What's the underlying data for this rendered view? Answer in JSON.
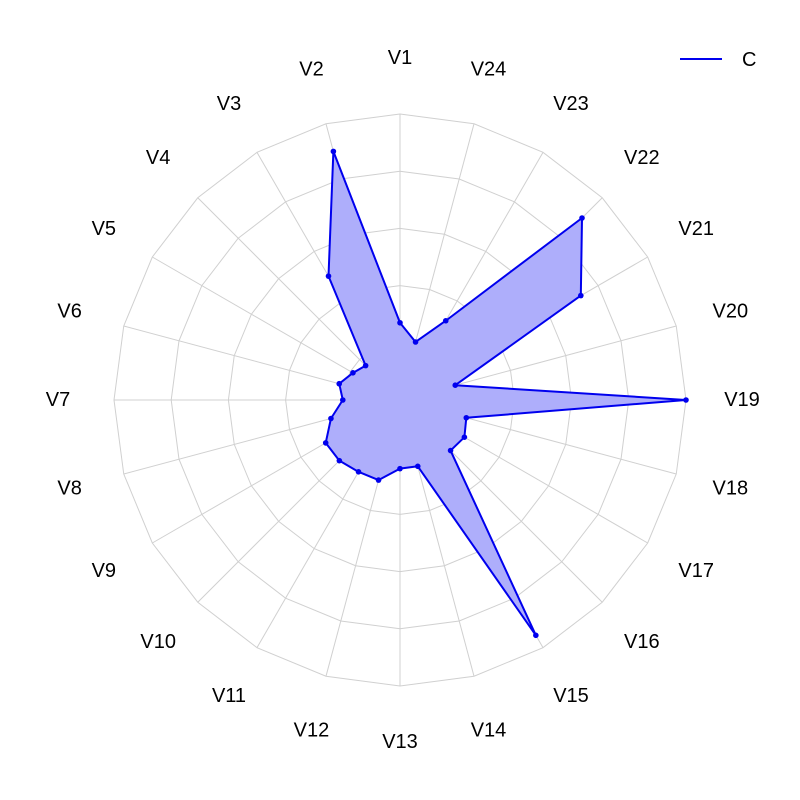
{
  "chart_data": {
    "type": "radar",
    "title": "",
    "axes": [
      "V1",
      "V2",
      "V3",
      "V4",
      "V5",
      "V6",
      "V7",
      "V8",
      "V9",
      "V10",
      "V11",
      "V12",
      "V13",
      "V14",
      "V15",
      "V16",
      "V17",
      "V18",
      "V19",
      "V20",
      "V21",
      "V22",
      "V23",
      "V24"
    ],
    "grid_levels": 5,
    "r_range": [
      0,
      1
    ],
    "grid": true,
    "legend_position": "top-right",
    "series": [
      {
        "name": "C",
        "color": "#0000ee",
        "fill": "#aeaefb",
        "values": [
          0.27,
          0.9,
          0.5,
          0.17,
          0.19,
          0.22,
          0.2,
          0.25,
          0.3,
          0.3,
          0.29,
          0.29,
          0.24,
          0.24,
          0.95,
          0.25,
          0.26,
          0.24,
          1.0,
          0.2,
          0.73,
          0.9,
          0.32,
          0.21
        ]
      }
    ]
  }
}
